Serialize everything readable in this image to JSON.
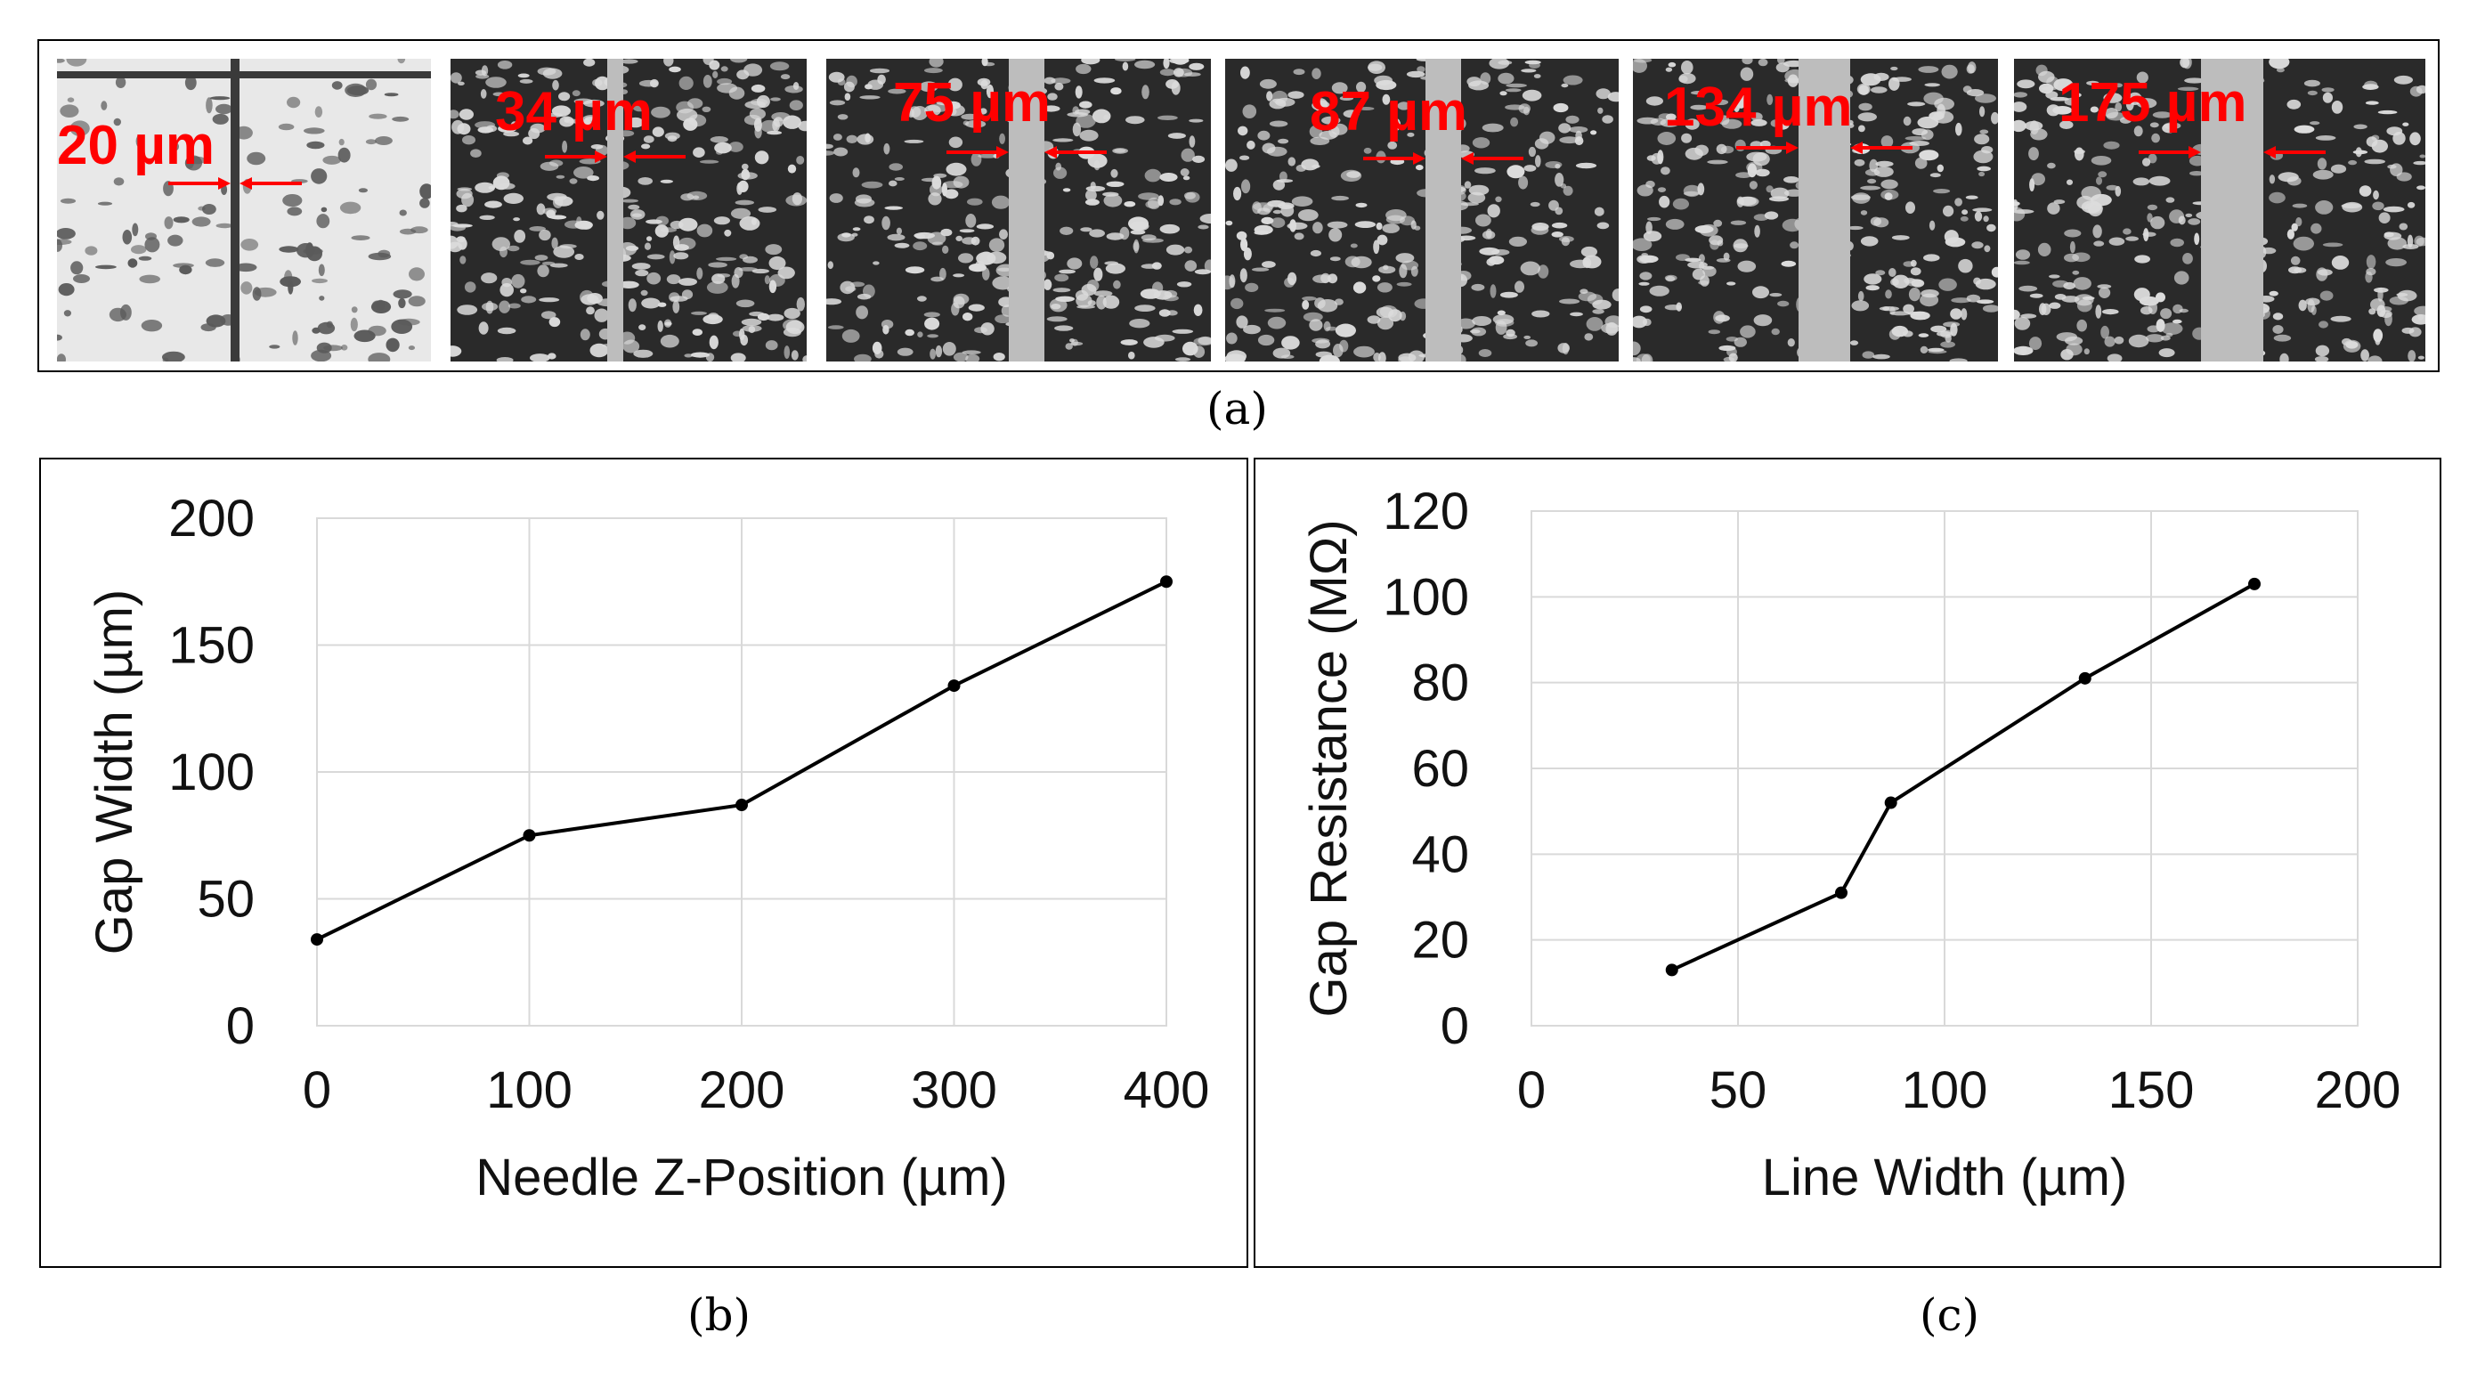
{
  "captions": {
    "a": "(a)",
    "b": "(b)",
    "c": "(c)"
  },
  "panel_a": {
    "images": [
      {
        "label": "20 µm",
        "pattern": "sparse-dark-on-light"
      },
      {
        "label": "34 µm",
        "pattern": "light-on-dark"
      },
      {
        "label": "75 µm",
        "pattern": "dense-texture"
      },
      {
        "label": "87 µm",
        "pattern": "dense-texture"
      },
      {
        "label": "134 µm",
        "pattern": "dense-texture"
      },
      {
        "label": "175 µm",
        "pattern": "cellular-texture"
      }
    ],
    "label_color": "#ff0000"
  },
  "chart_data": [
    {
      "type": "line",
      "panel": "b",
      "title": "",
      "xlabel": "Needle Z-Position (µm)",
      "ylabel": "Gap Width (µm)",
      "xlim": [
        0,
        400
      ],
      "ylim": [
        0,
        200
      ],
      "xticks": [
        0,
        100,
        200,
        300,
        400
      ],
      "yticks": [
        0,
        50,
        100,
        150,
        200
      ],
      "grid": true,
      "series": [
        {
          "x": [
            0,
            100,
            200,
            300,
            400
          ],
          "y": [
            34,
            75,
            87,
            134,
            175
          ]
        }
      ]
    },
    {
      "type": "line",
      "panel": "c",
      "title": "",
      "xlabel": "Line Width (µm)",
      "ylabel": "Gap Resistance (MΩ)",
      "xlim": [
        0,
        200
      ],
      "ylim": [
        0,
        120
      ],
      "xticks": [
        0,
        50,
        100,
        150,
        200
      ],
      "yticks": [
        0,
        20,
        40,
        60,
        80,
        100,
        120
      ],
      "grid": true,
      "series": [
        {
          "x": [
            34,
            75,
            87,
            134,
            175
          ],
          "y": [
            13,
            31,
            52,
            81,
            103
          ]
        }
      ]
    }
  ]
}
